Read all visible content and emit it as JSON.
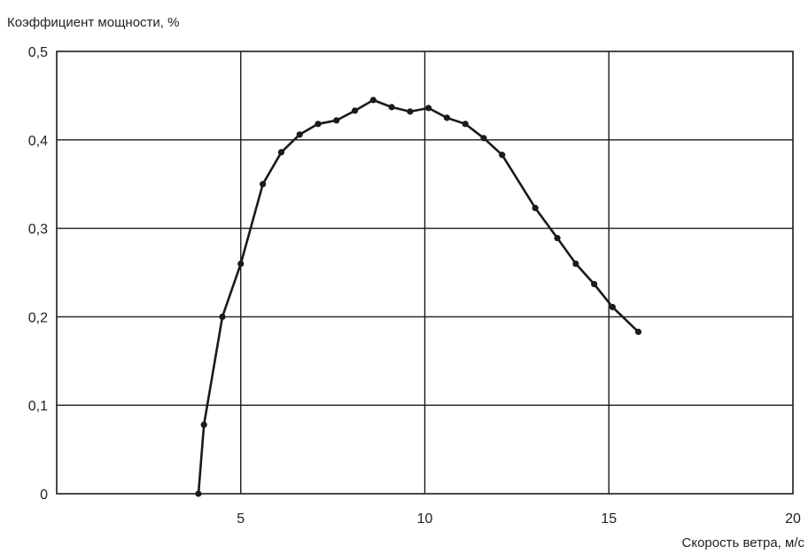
{
  "chart_data": {
    "type": "line",
    "title": "",
    "ylabel": "Коэффициент мощности, %",
    "xlabel": "Скорость ветра, м/с",
    "xlim": [
      0,
      20
    ],
    "ylim": [
      0,
      0.5
    ],
    "x_ticks": [
      {
        "value": 5,
        "label": "5"
      },
      {
        "value": 10,
        "label": "10"
      },
      {
        "value": 15,
        "label": "15"
      },
      {
        "value": 20,
        "label": "20"
      }
    ],
    "y_ticks": [
      {
        "value": 0,
        "label": "0"
      },
      {
        "value": 0.1,
        "label": "0,1"
      },
      {
        "value": 0.2,
        "label": "0,2"
      },
      {
        "value": 0.3,
        "label": "0,3"
      },
      {
        "value": 0.4,
        "label": "0,4"
      },
      {
        "value": 0.5,
        "label": "0,5"
      }
    ],
    "grid": true,
    "series": [
      {
        "color": "#1a1a1a",
        "x": [
          3.85,
          4.0,
          4.5,
          5.0,
          5.6,
          6.1,
          6.6,
          7.1,
          7.6,
          8.1,
          8.6,
          9.1,
          9.6,
          10.1,
          10.6,
          11.1,
          11.6,
          12.1,
          13.0,
          13.6,
          14.1,
          14.6,
          15.1,
          15.8
        ],
        "y": [
          0.0,
          0.078,
          0.2,
          0.26,
          0.35,
          0.386,
          0.406,
          0.418,
          0.422,
          0.433,
          0.445,
          0.437,
          0.432,
          0.436,
          0.425,
          0.418,
          0.402,
          0.383,
          0.323,
          0.289,
          0.26,
          0.237,
          0.211,
          0.183
        ]
      }
    ]
  }
}
